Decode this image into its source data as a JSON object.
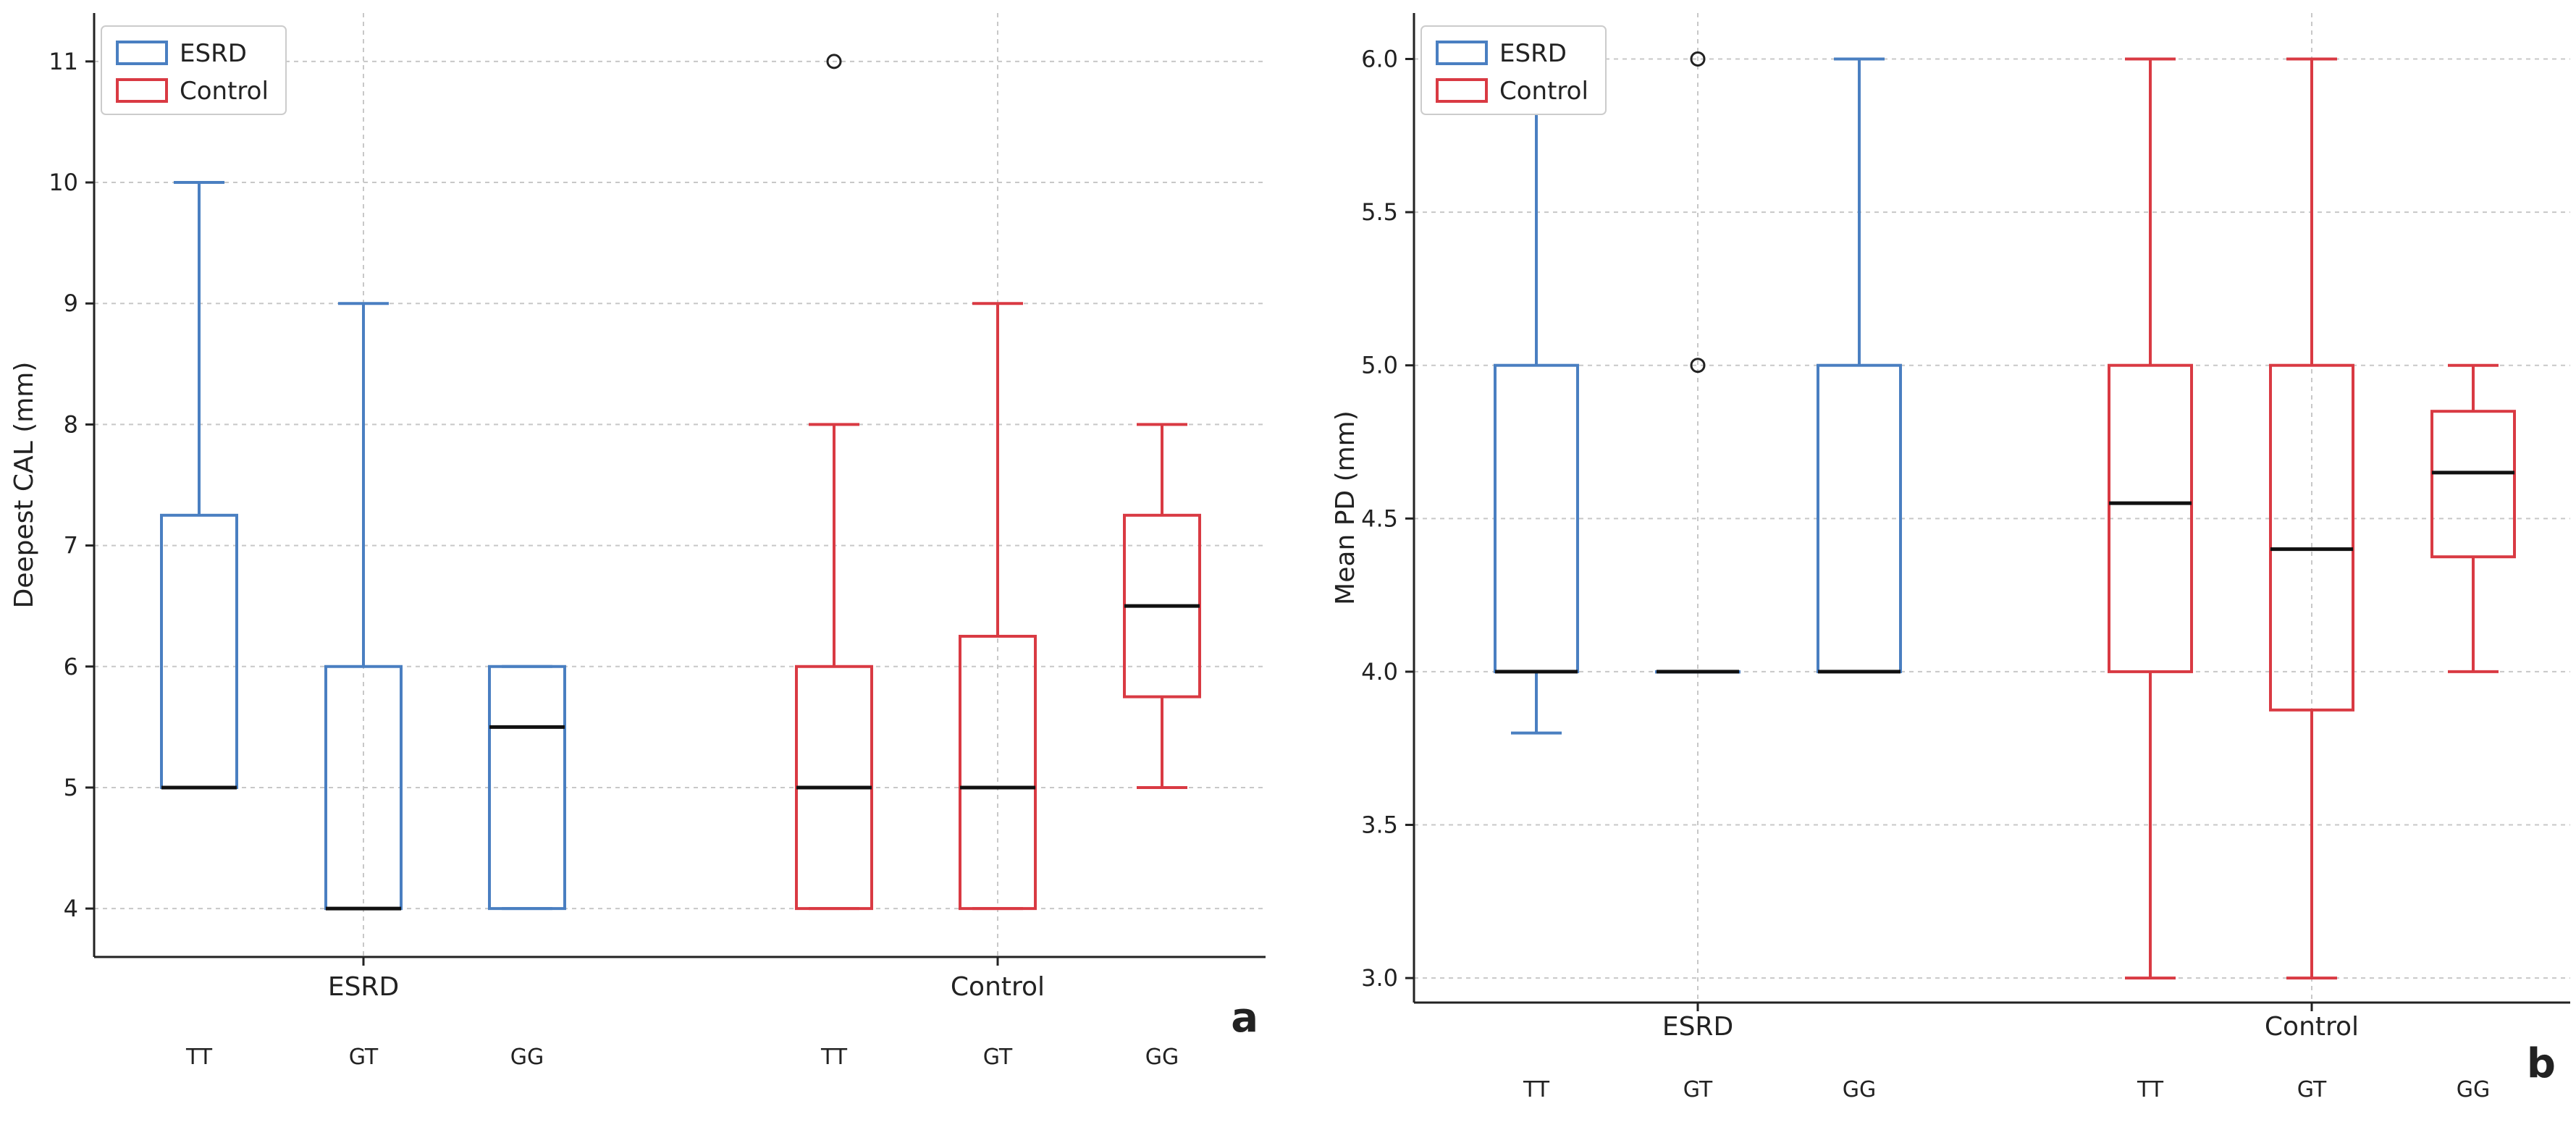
{
  "colors": {
    "esrd": "#4a7fc1",
    "control": "#d93a43",
    "median": "#111111",
    "grid": "#c8c8c8",
    "axis": "#222222"
  },
  "chart_data": [
    {
      "panel": "a",
      "type": "box",
      "ylabel": "Deepest CAL (mm)",
      "ylim": [
        3.6,
        11.4
      ],
      "yticks": [
        4,
        5,
        6,
        7,
        8,
        9,
        10,
        11
      ],
      "ytick_labels": [
        "4",
        "5",
        "6",
        "7",
        "8",
        "9",
        "10",
        "11"
      ],
      "group_labels": [
        "ESRD",
        "Control"
      ],
      "category_labels": [
        "TT",
        "GT",
        "GG",
        "TT",
        "GT",
        "GG"
      ],
      "legend": [
        "ESRD",
        "Control"
      ],
      "legend_position": "top-left",
      "grid": true,
      "series": [
        {
          "name": "ESRD",
          "boxes": [
            {
              "category": "TT",
              "whisker_low": 5,
              "q1": 5,
              "median": 5,
              "q3": 7.25,
              "whisker_high": 10,
              "outliers": []
            },
            {
              "category": "GT",
              "whisker_low": 4,
              "q1": 4,
              "median": 4,
              "q3": 6,
              "whisker_high": 9,
              "outliers": []
            },
            {
              "category": "GG",
              "whisker_low": 4,
              "q1": 4,
              "median": 5.5,
              "q3": 6,
              "whisker_high": 6,
              "outliers": []
            }
          ]
        },
        {
          "name": "Control",
          "boxes": [
            {
              "category": "TT",
              "whisker_low": 4,
              "q1": 4,
              "median": 5,
              "q3": 6,
              "whisker_high": 8,
              "outliers": [
                11
              ]
            },
            {
              "category": "GT",
              "whisker_low": 4,
              "q1": 4,
              "median": 5,
              "q3": 6.25,
              "whisker_high": 9,
              "outliers": []
            },
            {
              "category": "GG",
              "whisker_low": 5,
              "q1": 5.75,
              "median": 6.5,
              "q3": 7.25,
              "whisker_high": 8,
              "outliers": []
            }
          ]
        }
      ]
    },
    {
      "panel": "b",
      "type": "box",
      "ylabel": "Mean PD (mm)",
      "ylim": [
        2.92,
        6.15
      ],
      "yticks": [
        3.0,
        3.5,
        4.0,
        4.5,
        5.0,
        5.5,
        6.0
      ],
      "ytick_labels": [
        "3.0",
        "3.5",
        "4.0",
        "4.5",
        "5.0",
        "5.5",
        "6.0"
      ],
      "group_labels": [
        "ESRD",
        "Control"
      ],
      "category_labels": [
        "TT",
        "GT",
        "GG",
        "TT",
        "GT",
        "GG"
      ],
      "legend": [
        "ESRD",
        "Control"
      ],
      "legend_position": "top-left",
      "grid": true,
      "series": [
        {
          "name": "ESRD",
          "boxes": [
            {
              "category": "TT",
              "whisker_low": 3.8,
              "q1": 4.0,
              "median": 4.0,
              "q3": 5.0,
              "whisker_high": 6.0,
              "outliers": []
            },
            {
              "category": "GT",
              "whisker_low": 4.0,
              "q1": 4.0,
              "median": 4.0,
              "q3": 4.0,
              "whisker_high": 4.0,
              "outliers": [
                5.0,
                6.0
              ]
            },
            {
              "category": "GG",
              "whisker_low": 4.0,
              "q1": 4.0,
              "median": 4.0,
              "q3": 5.0,
              "whisker_high": 6.0,
              "outliers": []
            }
          ]
        },
        {
          "name": "Control",
          "boxes": [
            {
              "category": "TT",
              "whisker_low": 3.0,
              "q1": 4.0,
              "median": 4.55,
              "q3": 5.0,
              "whisker_high": 6.0,
              "outliers": []
            },
            {
              "category": "GT",
              "whisker_low": 3.0,
              "q1": 3.875,
              "median": 4.4,
              "q3": 5.0,
              "whisker_high": 6.0,
              "outliers": []
            },
            {
              "category": "GG",
              "whisker_low": 4.0,
              "q1": 4.375,
              "median": 4.65,
              "q3": 4.85,
              "whisker_high": 5.0,
              "outliers": []
            }
          ]
        }
      ]
    }
  ]
}
